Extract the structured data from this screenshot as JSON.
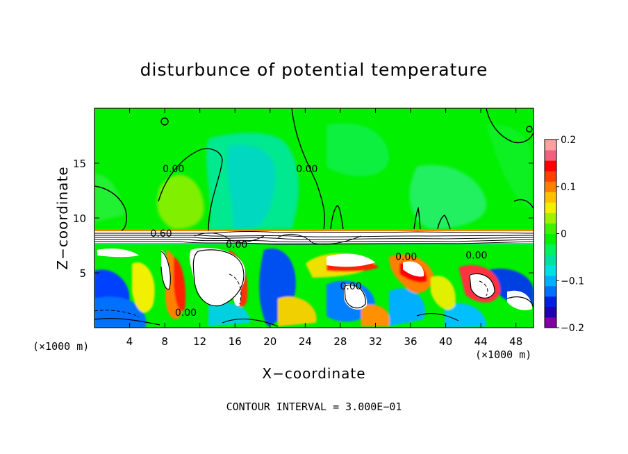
{
  "chart_data": {
    "type": "heatmap",
    "title": "disturbunce of potential temperature",
    "xlabel": "X−coordinate",
    "ylabel": "Z−coordinate",
    "x_unit": "(×1000 m)",
    "y_unit": "(×1000 m)",
    "x_ticks": [
      4,
      8,
      12,
      16,
      20,
      24,
      28,
      32,
      36,
      40,
      44,
      48
    ],
    "y_ticks": [
      5,
      10,
      15
    ],
    "xlim": [
      0,
      50
    ],
    "ylim": [
      0,
      20
    ],
    "colorbar": {
      "ticks": [
        "0.2",
        "0.1",
        "0",
        "−0.1",
        "−0.2"
      ],
      "tick_values": [
        0.2,
        0.1,
        0,
        -0.1,
        -0.2
      ],
      "range": [
        -0.2,
        0.2
      ],
      "colors": [
        "#8000a0",
        "#2000b0",
        "#0020e0",
        "#0070ff",
        "#00b0ff",
        "#00e0e0",
        "#00e0a0",
        "#00f060",
        "#00f000",
        "#40f000",
        "#a0f000",
        "#f0f000",
        "#ffc000",
        "#ff8000",
        "#ff4000",
        "#ff0000",
        "#f06080",
        "#ffa0a0"
      ]
    },
    "contour_labels": [
      {
        "text": "0.00",
        "x": 9.0,
        "z": 14.5
      },
      {
        "text": "0.00",
        "x": 24.2,
        "z": 14.5
      },
      {
        "text": "0.60",
        "x": 7.6,
        "z": 8.6
      },
      {
        "text": "0.00",
        "x": 16.2,
        "z": 7.6
      },
      {
        "text": "0.00",
        "x": 35.5,
        "z": 6.5
      },
      {
        "text": "0.00",
        "x": 43.5,
        "z": 6.6
      },
      {
        "text": "0.00",
        "x": 29.2,
        "z": 3.8
      },
      {
        "text": "0.00",
        "x": 10.4,
        "z": 1.4
      }
    ],
    "contour_interval": "CONTOUR INTERVAL = 3.000E−01"
  }
}
